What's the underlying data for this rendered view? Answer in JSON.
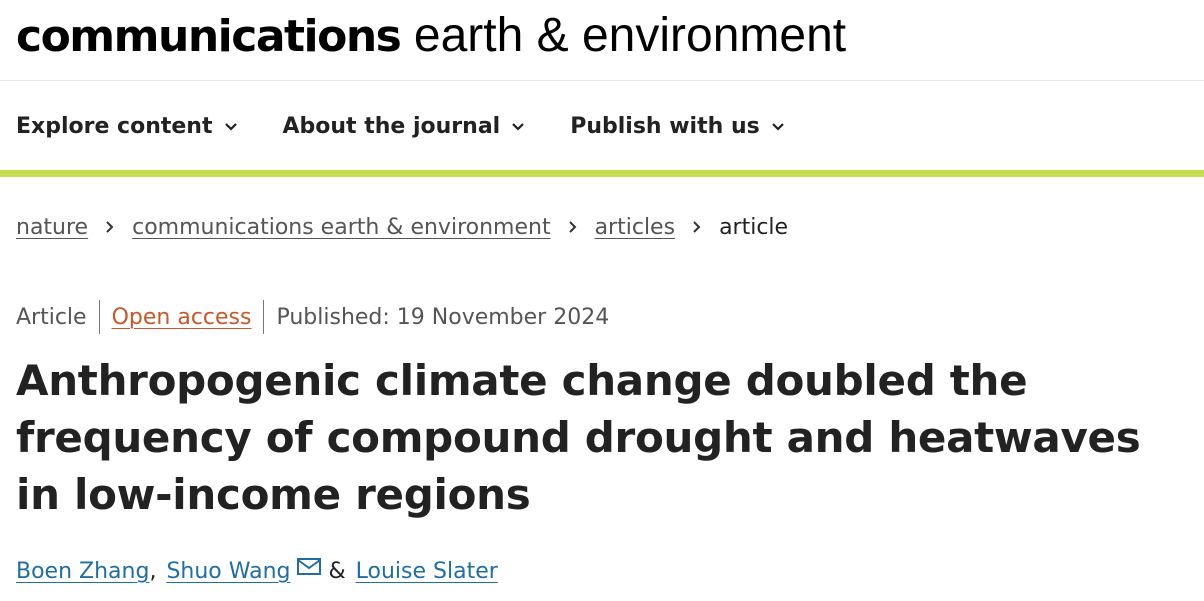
{
  "masthead": {
    "brand": "communications",
    "subtitle": "earth & environment"
  },
  "nav": {
    "items": [
      {
        "label": "Explore content",
        "icon": "chevron-down-icon"
      },
      {
        "label": "About the journal",
        "icon": "chevron-down-icon"
      },
      {
        "label": "Publish with us",
        "icon": "chevron-down-icon"
      }
    ]
  },
  "colors": {
    "accent_bar": "#c8dc4f",
    "open_access": "#c9572a",
    "author_link": "#1f6ea3",
    "text": "#222222"
  },
  "breadcrumb": {
    "items": [
      "nature",
      "communications earth & environment",
      "articles"
    ],
    "current": "article"
  },
  "meta": {
    "type": "Article",
    "access": "Open access",
    "published": "Published: 19 November 2024"
  },
  "article": {
    "title": "Anthropogenic climate change doubled the frequency of compound drought and heatwaves in low-income regions"
  },
  "authors": {
    "list": [
      "Boen Zhang",
      "Shuo Wang",
      "Louise Slater"
    ],
    "separator_comma": ",",
    "separator_and": "&",
    "contact_icon": "envelope-icon"
  }
}
